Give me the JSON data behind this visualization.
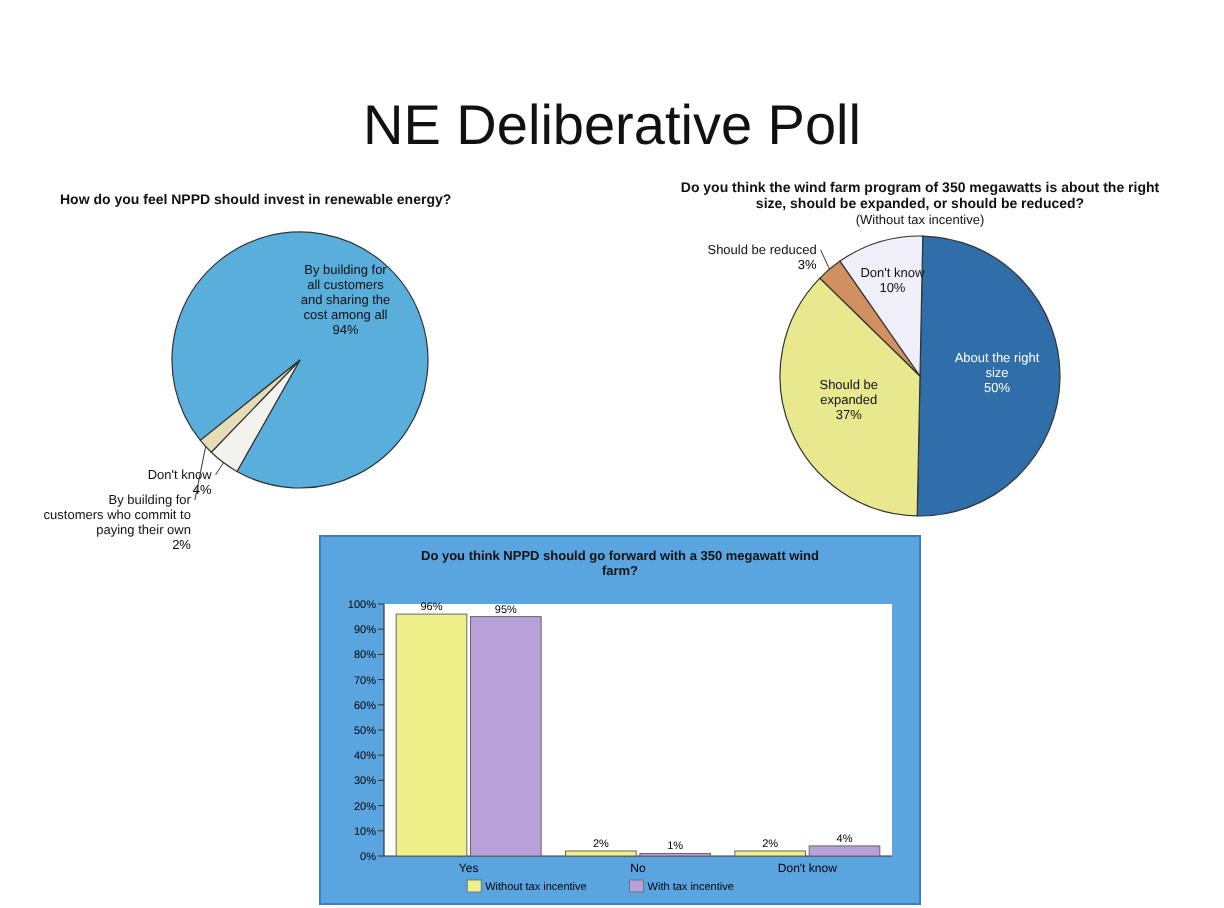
{
  "chart_data": [
    {
      "type": "other",
      "title": "NE Deliberative Poll"
    },
    {
      "type": "pie",
      "title": "How do you feel NPPD should invest in renewable energy?",
      "categories": [
        "By building for all customers and sharing the cost among all",
        "Don't know",
        "By building for customers who commit to paying their own"
      ],
      "values": [
        94,
        4,
        2
      ],
      "value_labels": [
        "94%",
        "4%",
        "2%"
      ],
      "colors": [
        "#5aaedc",
        "#f2f2ee",
        "#e6dcb8"
      ],
      "data_labels": true
    },
    {
      "type": "pie",
      "title": "Do you think the wind farm program of 350 megawatts is about the right size, should be expanded, or should be reduced?",
      "subtitle": "(Without tax incentive)",
      "categories": [
        "About the right size",
        "Should be expanded",
        "Should be reduced",
        "Don't know"
      ],
      "values": [
        50,
        37,
        3,
        10
      ],
      "value_labels": [
        "50%",
        "37%",
        "3%",
        "10%"
      ],
      "colors": [
        "#2f6ea8",
        "#e8e88e",
        "#d09060",
        "#f0eef8"
      ],
      "data_labels": true
    },
    {
      "type": "bar",
      "title": "Do you think NPPD should go forward with a 350 megawatt wind farm?",
      "categories": [
        "Yes",
        "No",
        "Don't know"
      ],
      "series": [
        {
          "name": "Without tax incentive",
          "color": "#eef08a",
          "values": [
            96,
            2,
            2
          ],
          "value_labels": [
            "96%",
            "2%",
            "2%"
          ]
        },
        {
          "name": "With tax incentive",
          "color": "#b8a0d8",
          "values": [
            95,
            1,
            4
          ],
          "value_labels": [
            "95%",
            "1%",
            "4%"
          ]
        }
      ],
      "ylim": [
        0,
        100
      ],
      "yticks": [
        {
          "value": 0,
          "label": "0%"
        },
        {
          "value": 10,
          "label": "10%"
        },
        {
          "value": 20,
          "label": "20%"
        },
        {
          "value": 30,
          "label": "30%"
        },
        {
          "value": 40,
          "label": "40%"
        },
        {
          "value": 50,
          "label": "50%"
        },
        {
          "value": 60,
          "label": "60%"
        },
        {
          "value": 70,
          "label": "70%"
        },
        {
          "value": 80,
          "label": "80%"
        },
        {
          "value": 90,
          "label": "90%"
        },
        {
          "value": 100,
          "label": "100%"
        }
      ],
      "legend": "bottom",
      "data_labels": true
    }
  ]
}
